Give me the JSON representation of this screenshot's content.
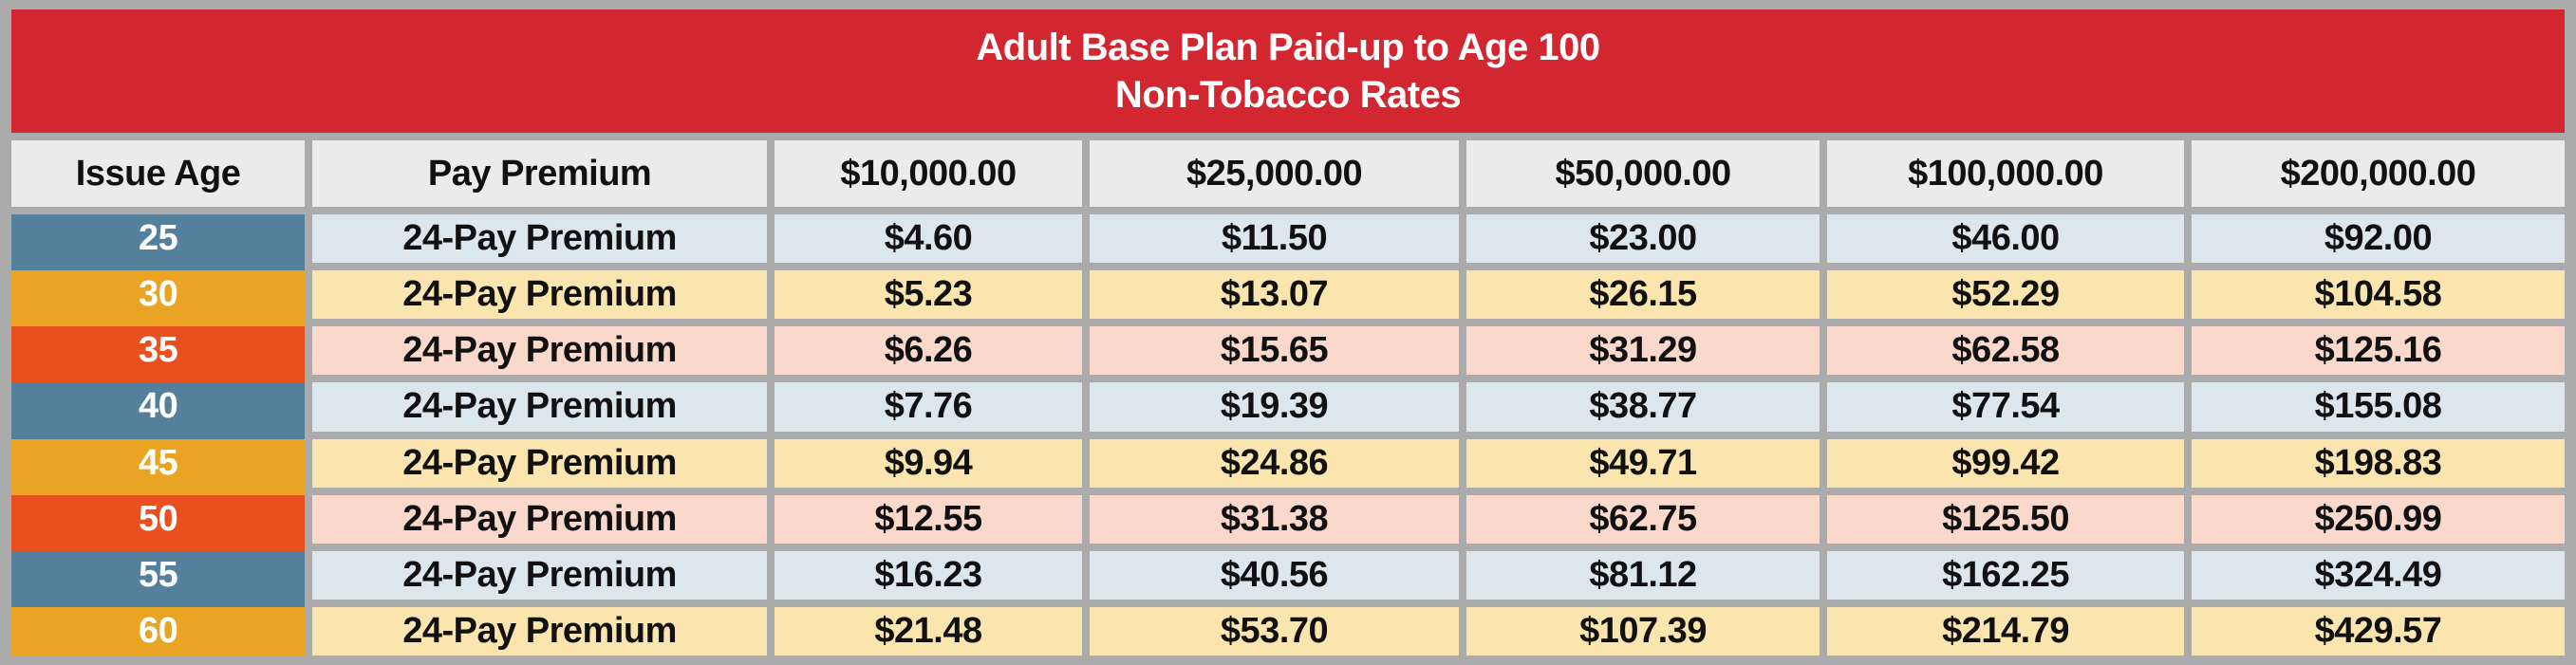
{
  "title": {
    "line1": "Adult Base Plan Paid-up to Age 100",
    "line2": "Non-Tobacco Rates"
  },
  "chart_data": {
    "type": "table",
    "title": "Adult Base Plan Paid-up to Age 100",
    "subtitle": "Non-Tobacco Rates",
    "columns": [
      "Issue Age",
      "Pay Premium",
      "$10,000.00",
      "$25,000.00",
      "$50,000.00",
      "$100,000.00",
      "$200,000.00"
    ],
    "rows": [
      [
        "25",
        "24-Pay Premium",
        "$4.60",
        "$11.50",
        "$23.00",
        "$46.00",
        "$92.00"
      ],
      [
        "30",
        "24-Pay Premium",
        "$5.23",
        "$13.07",
        "$26.15",
        "$52.29",
        "$104.58"
      ],
      [
        "35",
        "24-Pay Premium",
        "$6.26",
        "$15.65",
        "$31.29",
        "$62.58",
        "$125.16"
      ],
      [
        "40",
        "24-Pay Premium",
        "$7.76",
        "$19.39",
        "$38.77",
        "$77.54",
        "$155.08"
      ],
      [
        "45",
        "24-Pay Premium",
        "$9.94",
        "$24.86",
        "$49.71",
        "$99.42",
        "$198.83"
      ],
      [
        "50",
        "24-Pay Premium",
        "$12.55",
        "$31.38",
        "$62.75",
        "$125.50",
        "$250.99"
      ],
      [
        "55",
        "24-Pay Premium",
        "$16.23",
        "$40.56",
        "$81.12",
        "$162.25",
        "$324.49"
      ],
      [
        "60",
        "24-Pay Premium",
        "$21.48",
        "$53.70",
        "$107.39",
        "$214.79",
        "$429.57"
      ]
    ]
  },
  "theme": {
    "title_bg": "#d22630",
    "title_text": "#ffffff",
    "grid_gray": "#ababab",
    "header_bg": "#ebebeb",
    "text_dark": "#111111",
    "age_blue": "#54809b",
    "age_amber": "#e9a424",
    "age_orange": "#e8501f",
    "row_blue": "#dbe6ed",
    "row_amber": "#fbe5ae",
    "row_pink": "#fad8cc",
    "age_text": "#ffffff"
  }
}
